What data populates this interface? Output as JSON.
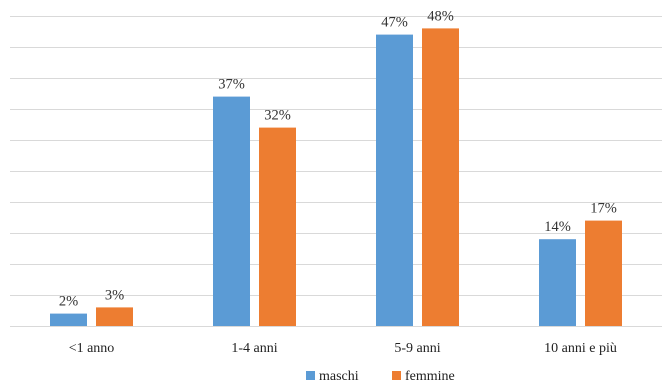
{
  "chart_data": {
    "type": "bar",
    "categories": [
      "<1 anno",
      "1-4 anni",
      "5-9 anni",
      "10 anni e più"
    ],
    "series": [
      {
        "name": "maschi",
        "values": [
          2,
          37,
          47,
          14
        ],
        "labels": [
          "2%",
          "37%",
          "47%",
          "14%"
        ],
        "color": "#5b9bd5"
      },
      {
        "name": "femmine",
        "values": [
          3,
          32,
          48,
          17
        ],
        "labels": [
          "3%",
          "32%",
          "48%",
          "17%"
        ],
        "color": "#ed7d31"
      }
    ],
    "ylim": [
      0,
      50
    ],
    "grid": true,
    "legend": "bottom",
    "title": "",
    "xlabel": "",
    "ylabel": ""
  }
}
